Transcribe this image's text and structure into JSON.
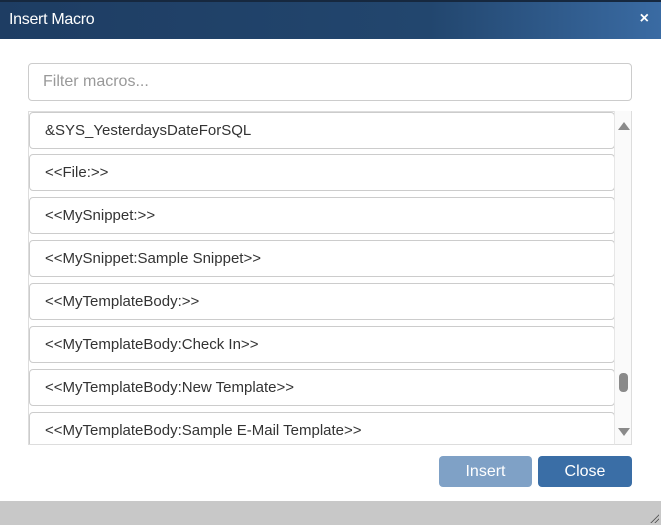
{
  "dialog": {
    "title": "Insert Macro",
    "close_icon": "×"
  },
  "filter": {
    "placeholder": "Filter macros...",
    "value": ""
  },
  "items": [
    "&SYS_YesterdaysDateForSQL",
    "<<File:>>",
    "<<MySnippet:>>",
    "<<MySnippet:Sample Snippet>>",
    "<<MyTemplateBody:>>",
    "<<MyTemplateBody:Check In>>",
    "<<MyTemplateBody:New Template>>",
    "<<MyTemplateBody:Sample E-Mail Template>>"
  ],
  "scroll": {
    "position_fraction": 0.82
  },
  "buttons": {
    "insert": "Insert",
    "close": "Close"
  }
}
